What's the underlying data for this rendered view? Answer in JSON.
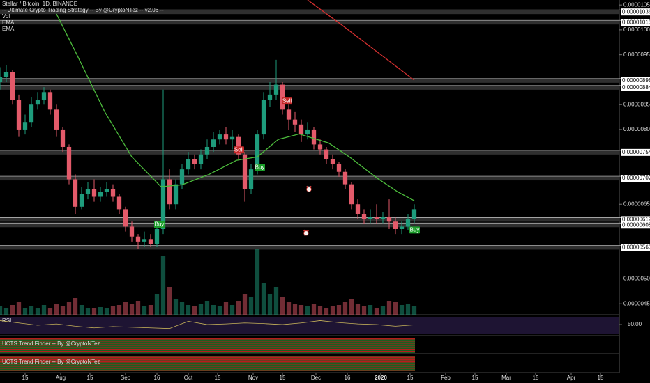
{
  "chart_data": {
    "type": "candlestick",
    "legend": [
      "Stellar / Bitcoin, 1D, BINANCE",
      "-- Ultimate Crypto Trading Strategy -- By @CryptoNTez -- v2.06 --",
      "Vol",
      "EMA",
      "EMA"
    ],
    "xlim": [
      0,
      296
    ],
    "xticks": [
      {
        "value": 12,
        "label": "15"
      },
      {
        "value": 29,
        "label": "Aug"
      },
      {
        "value": 43,
        "label": "15"
      },
      {
        "value": 60,
        "label": "Sep"
      },
      {
        "value": 75,
        "label": "16"
      },
      {
        "value": 90,
        "label": "Oct"
      },
      {
        "value": 104,
        "label": "15"
      },
      {
        "value": 121,
        "label": "Nov"
      },
      {
        "value": 135,
        "label": "15"
      },
      {
        "value": 151,
        "label": "Dec"
      },
      {
        "value": 166,
        "label": "16"
      },
      {
        "value": 182,
        "label": "2020"
      },
      {
        "value": 196,
        "label": "15"
      },
      {
        "value": 213,
        "label": "Feb"
      },
      {
        "value": 227,
        "label": "15"
      },
      {
        "value": 242,
        "label": "Mar"
      },
      {
        "value": 256,
        "label": "15"
      },
      {
        "value": 273,
        "label": "Apr"
      },
      {
        "value": 287,
        "label": "15"
      }
    ],
    "ylim": [
      4.28e-06,
      1.06e-05
    ],
    "yticks": [
      {
        "value": 1.05e-05,
        "label": "0.00001050"
      },
      {
        "value": 1e-05,
        "label": "0.00001000"
      },
      {
        "value": 9.5e-06,
        "label": "0.00000950"
      },
      {
        "value": 8.5e-06,
        "label": "0.00000850"
      },
      {
        "value": 8e-06,
        "label": "0.00000800"
      },
      {
        "value": 6.5e-06,
        "label": "0.00000650"
      },
      {
        "value": 5e-06,
        "label": "0.00000500"
      },
      {
        "value": 4.5e-06,
        "label": "0.00000450"
      }
    ],
    "levels": [
      {
        "value": 1.036e-05,
        "label": "0.00001036"
      },
      {
        "value": 1.015e-05,
        "label": "0.00001015"
      },
      {
        "value": 8.98e-06,
        "label": "0.00000898"
      },
      {
        "value": 8.84e-06,
        "label": "0.00000884"
      },
      {
        "value": 7.54e-06,
        "label": "0.00000754"
      },
      {
        "value": 7.02e-06,
        "label": "0.00000702"
      },
      {
        "value": 6.19e-06,
        "label": "0.00000619"
      },
      {
        "value": 6.08e-06,
        "label": "0.00000608"
      },
      {
        "value": 5.63e-06,
        "label": "0.00000563"
      }
    ],
    "up_color": "#1e9c7c",
    "down_color": "#e35a6a",
    "candles": {
      "x": [
        0,
        3,
        6,
        9,
        12,
        15,
        18,
        21,
        24,
        27,
        30,
        33,
        36,
        39,
        42,
        45,
        48,
        51,
        54,
        57,
        60,
        63,
        66,
        69,
        72,
        75,
        78,
        81,
        84,
        87,
        90,
        93,
        96,
        99,
        102,
        105,
        108,
        111,
        114,
        117,
        120,
        123,
        126,
        129,
        132,
        135,
        138,
        141,
        144,
        147,
        150,
        153,
        156,
        159,
        162,
        165,
        168,
        171,
        174,
        177,
        180,
        183,
        186,
        189,
        192,
        195,
        198
      ],
      "open": [
        8.95e-06,
        9.05e-06,
        9.15e-06,
        8.6e-06,
        8e-06,
        8.15e-06,
        8.5e-06,
        8.6e-06,
        8.75e-06,
        8.4e-06,
        8e-06,
        7.65e-06,
        7e-06,
        6.45e-06,
        6.7e-06,
        6.8e-06,
        6.65e-06,
        6.75e-06,
        6.8e-06,
        6.65e-06,
        6.4e-06,
        6.05e-06,
        5.85e-06,
        5.75e-06,
        5.8e-06,
        5.7e-06,
        6e-06,
        7e-06,
        6.5e-06,
        6.9e-06,
        7.2e-06,
        7.4e-06,
        7.3e-06,
        7.5e-06,
        7.65e-06,
        7.8e-06,
        7.9e-06,
        7.8e-06,
        7.85e-06,
        7.5e-06,
        6.8e-06,
        7.2e-06,
        7.9e-06,
        8.6e-06,
        8.7e-06,
        8.9e-06,
        8.4e-06,
        8.2e-06,
        8.1e-06,
        7.9e-06,
        8e-06,
        7.7e-06,
        7.6e-06,
        7.4e-06,
        7.3e-06,
        7.15e-06,
        6.9e-06,
        6.5e-06,
        6.3e-06,
        6.2e-06,
        6.25e-06,
        6.2e-06,
        6.25e-06,
        6.15e-06,
        6e-06,
        6.05e-06,
        6.2e-06
      ],
      "high": [
        9.25e-06,
        9.3e-06,
        9.2e-06,
        8.7e-06,
        8.3e-06,
        8.65e-06,
        8.75e-06,
        8.85e-06,
        8.8e-06,
        8.5e-06,
        8.05e-06,
        7.7e-06,
        7.1e-06,
        6.85e-06,
        6.95e-06,
        7e-06,
        6.85e-06,
        6.95e-06,
        6.9e-06,
        6.7e-06,
        6.45e-06,
        6.15e-06,
        5.9e-06,
        5.95e-06,
        5.9e-06,
        6.1e-06,
        8.8e-06,
        7.2e-06,
        7e-06,
        7.3e-06,
        7.55e-06,
        7.5e-06,
        7.6e-06,
        7.8e-06,
        7.95e-06,
        8e-06,
        8.05e-06,
        8e-06,
        7.9e-06,
        7.55e-06,
        7.3e-06,
        8e-06,
        8.75e-06,
        8.95e-06,
        9.4e-06,
        8.95e-06,
        8.5e-06,
        8.35e-06,
        8.2e-06,
        8.15e-06,
        8.05e-06,
        7.8e-06,
        7.65e-06,
        7.5e-06,
        7.35e-06,
        7.2e-06,
        6.95e-06,
        6.6e-06,
        6.4e-06,
        6.4e-06,
        6.5e-06,
        6.35e-06,
        6.6e-06,
        6.25e-06,
        6.15e-06,
        6.3e-06,
        6.5e-06
      ],
      "low": [
        8.8e-06,
        8.95e-06,
        8.5e-06,
        7.85e-06,
        7.9e-06,
        8.05e-06,
        8.4e-06,
        8.5e-06,
        8.3e-06,
        7.85e-06,
        7.55e-06,
        6.9e-06,
        6.3e-06,
        6.4e-06,
        6.6e-06,
        6.55e-06,
        6.55e-06,
        6.65e-06,
        6.55e-06,
        6.3e-06,
        5.95e-06,
        5.75e-06,
        5.6e-06,
        5.65e-06,
        5.65e-06,
        5.65e-06,
        5.9e-06,
        6.4e-06,
        6.4e-06,
        6.8e-06,
        7.1e-06,
        7.2e-06,
        7.2e-06,
        7.4e-06,
        7.55e-06,
        7.7e-06,
        7.7e-06,
        7.6e-06,
        7.4e-06,
        6.55e-06,
        6.7e-06,
        7.1e-06,
        7.8e-06,
        8.45e-06,
        8.6e-06,
        8.3e-06,
        8e-06,
        7.95e-06,
        7.75e-06,
        7.8e-06,
        7.6e-06,
        7.5e-06,
        7.3e-06,
        7.2e-06,
        7.05e-06,
        6.8e-06,
        6.4e-06,
        6.2e-06,
        6.1e-06,
        6.12e-06,
        6.1e-06,
        6.12e-06,
        6e-06,
        5.9e-06,
        5.9e-06,
        5.98e-06,
        6.12e-06
      ],
      "close": [
        9.05e-06,
        9.15e-06,
        8.6e-06,
        8e-06,
        8.15e-06,
        8.5e-06,
        8.6e-06,
        8.75e-06,
        8.4e-06,
        8e-06,
        7.65e-06,
        7e-06,
        6.45e-06,
        6.7e-06,
        6.8e-06,
        6.65e-06,
        6.75e-06,
        6.8e-06,
        6.65e-06,
        6.4e-06,
        6.05e-06,
        5.85e-06,
        5.75e-06,
        5.8e-06,
        5.7e-06,
        6e-06,
        7e-06,
        6.5e-06,
        6.9e-06,
        7.2e-06,
        7.4e-06,
        7.3e-06,
        7.5e-06,
        7.65e-06,
        7.8e-06,
        7.9e-06,
        7.8e-06,
        7.85e-06,
        7.5e-06,
        6.8e-06,
        7.2e-06,
        7.9e-06,
        8.6e-06,
        8.7e-06,
        8.9e-06,
        8.4e-06,
        8.2e-06,
        8.1e-06,
        7.9e-06,
        8e-06,
        7.7e-06,
        7.6e-06,
        7.4e-06,
        7.3e-06,
        7.15e-06,
        6.9e-06,
        6.5e-06,
        6.3e-06,
        6.2e-06,
        6.25e-06,
        6.2e-06,
        6.25e-06,
        6.15e-06,
        6e-06,
        6.05e-06,
        6.2e-06,
        6.4e-06
      ],
      "volume": [
        12,
        10,
        14,
        18,
        10,
        12,
        9,
        14,
        10,
        16,
        12,
        18,
        24,
        14,
        10,
        9,
        11,
        10,
        12,
        14,
        18,
        16,
        20,
        12,
        14,
        30,
        85,
        40,
        22,
        18,
        14,
        12,
        16,
        20,
        14,
        12,
        18,
        14,
        20,
        30,
        25,
        95,
        45,
        30,
        40,
        26,
        18,
        16,
        14,
        12,
        16,
        12,
        10,
        12,
        14,
        18,
        22,
        16,
        12,
        14,
        10,
        12,
        20,
        18,
        14,
        16,
        12
      ]
    },
    "vlim": [
      0,
      100
    ],
    "ema": [
      {
        "color": "#4cbb3c",
        "x": [
          27,
          37,
          50,
          63,
          77,
          87,
          100,
          113,
          123,
          133,
          143,
          157,
          167,
          180,
          190,
          198
        ],
        "values": [
          1.032e-05,
          9.48e-06,
          8.36e-06,
          7.45e-06,
          6.85e-06,
          6.89e-06,
          7.1e-06,
          7.38e-06,
          7.45e-06,
          7.8e-06,
          7.91e-06,
          7.73e-06,
          7.45e-06,
          7.03e-06,
          6.75e-06,
          6.57e-06
        ]
      },
      {
        "color": "#d32f2f",
        "x": [
          147,
          163,
          198
        ],
        "values": [
          1.06e-05,
          1.011e-05,
          8.99e-06
        ]
      }
    ],
    "signals": [
      {
        "label": "Buy",
        "x": 76,
        "y": 6.09e-06
      },
      {
        "label": "Sell",
        "x": 114,
        "y": 7.59e-06
      },
      {
        "label": "Buy",
        "x": 124,
        "y": 7.24e-06
      },
      {
        "label": "Sell",
        "x": 137,
        "y": 8.57e-06
      },
      {
        "label": "Buy",
        "x": 198,
        "y": 5.98e-06
      }
    ],
    "rsi": {
      "label": "RSI",
      "color": "#c8b45a",
      "ylim": [
        16,
        80
      ],
      "bands": [
        70,
        30
      ],
      "yticks": [
        {
          "value": 50,
          "label": "50.00"
        }
      ],
      "x": [
        0,
        9,
        18,
        27,
        36,
        45,
        54,
        63,
        72,
        81,
        90,
        99,
        108,
        117,
        126,
        135,
        144,
        153,
        162,
        171,
        180,
        189,
        198
      ],
      "values": [
        62,
        55,
        48,
        52,
        45,
        40,
        44,
        42,
        40,
        38,
        60,
        50,
        52,
        55,
        53,
        50,
        55,
        62,
        56,
        52,
        50,
        45,
        49
      ]
    },
    "indicators": [
      "UCTS Trend Finder -- By @CryptoNTez",
      "UCTS Trend Finder -- By @CryptoNTez"
    ]
  }
}
